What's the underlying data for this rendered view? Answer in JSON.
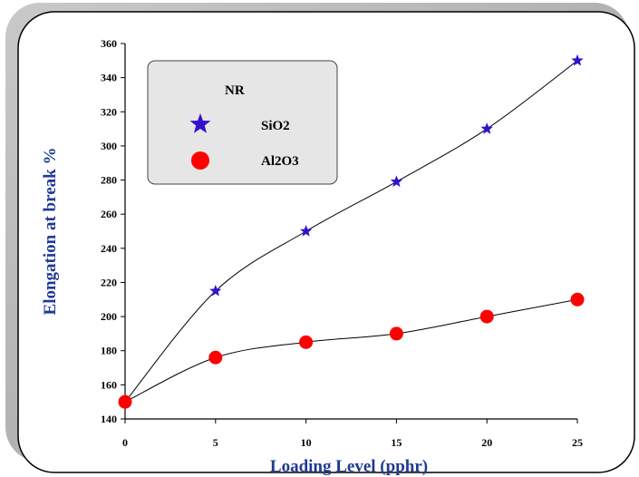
{
  "chart_data": {
    "type": "line",
    "xlabel": "Loading Level (pphr)",
    "ylabel": "Elongation at break %",
    "x_ticks": [
      "0",
      "5",
      "10",
      "15",
      "20",
      "25"
    ],
    "y_ticks": [
      "140",
      "160",
      "180",
      "200",
      "220",
      "240",
      "260",
      "280",
      "300",
      "320",
      "340",
      "360"
    ],
    "xlim": [
      0,
      25
    ],
    "ylim": [
      140,
      360
    ],
    "grid": false,
    "legend_position": "top-left",
    "legend_title": "NR",
    "series": [
      {
        "name": "SiO2",
        "marker": "star",
        "color": "#3311cc",
        "x": [
          0,
          5,
          10,
          15,
          20,
          25
        ],
        "y": [
          150,
          215,
          250,
          279,
          310,
          350
        ]
      },
      {
        "name": "Al2O3",
        "marker": "circle",
        "color": "#ff0000",
        "x": [
          0,
          5,
          10,
          15,
          20,
          25
        ],
        "y": [
          150,
          176,
          185,
          190,
          200,
          210
        ]
      }
    ]
  }
}
